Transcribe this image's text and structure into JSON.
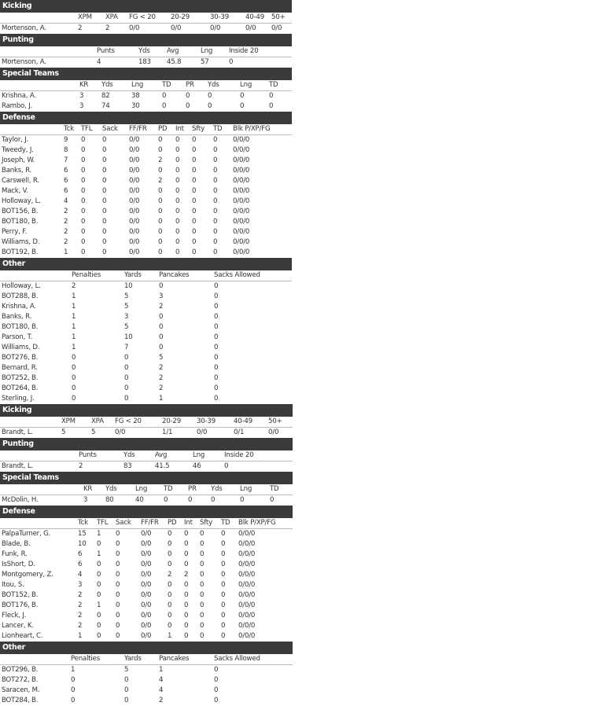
{
  "left": [
    {
      "title": "Kicking",
      "headers": [
        "XPM",
        "XPA",
        "FG < 20",
        "20-29",
        "30-39",
        "40-49",
        "50+"
      ],
      "rows": [
        [
          "Mortenson, A.",
          2,
          2,
          "0/0",
          "0/0",
          "0/0",
          "0/0",
          "0/0"
        ]
      ]
    },
    {
      "title": "Punting",
      "headers": [
        "Punts",
        "Yds",
        "Avg",
        "Lng",
        "Inside 20"
      ],
      "rows": [
        [
          "Mortenson, A.",
          4,
          183,
          45.8,
          57,
          0
        ]
      ]
    },
    {
      "title": "Special Teams",
      "headers": [
        "KR",
        "Yds",
        "Lng",
        "TD",
        "PR",
        "Yds",
        "Lng",
        "TD"
      ],
      "rows": [
        [
          "Krishna, A.",
          3,
          82,
          38,
          0,
          0,
          0,
          0,
          0
        ],
        [
          "Rambo, J.",
          3,
          74,
          30,
          0,
          0,
          0,
          0,
          0
        ]
      ]
    },
    {
      "title": "Defense",
      "headers": [
        "Tck",
        "TFL",
        "Sack",
        "FF/FR",
        "PD",
        "Int",
        "Sfty",
        "TD",
        "Blk P/XP/FG"
      ],
      "rows": [
        [
          "Taylor, J.",
          9,
          0,
          0,
          "0/0",
          0,
          0,
          0,
          0,
          "0/0/0"
        ],
        [
          "Tweedy, J.",
          8,
          0,
          0,
          "0/0",
          0,
          0,
          0,
          0,
          "0/0/0"
        ],
        [
          "Joseph, W.",
          7,
          0,
          0,
          "0/0",
          2,
          0,
          0,
          0,
          "0/0/0"
        ],
        [
          "Banks, R.",
          6,
          0,
          0,
          "0/0",
          0,
          0,
          0,
          0,
          "0/0/0"
        ],
        [
          "Carswell, R.",
          6,
          0,
          0,
          "0/0",
          2,
          0,
          0,
          0,
          "0/0/0"
        ],
        [
          "Mack, V.",
          6,
          0,
          0,
          "0/0",
          0,
          0,
          0,
          0,
          "0/0/0"
        ],
        [
          "Holloway, L.",
          4,
          0,
          0,
          "0/0",
          0,
          0,
          0,
          0,
          "0/0/0"
        ],
        [
          "BOT156, B.",
          2,
          0,
          0,
          "0/0",
          0,
          0,
          0,
          0,
          "0/0/0"
        ],
        [
          "BOT180, B.",
          2,
          0,
          0,
          "0/0",
          0,
          0,
          0,
          0,
          "0/0/0"
        ],
        [
          "Perry, F.",
          2,
          0,
          0,
          "0/0",
          0,
          0,
          0,
          0,
          "0/0/0"
        ],
        [
          "Williams, D.",
          2,
          0,
          0,
          "0/0",
          0,
          0,
          0,
          0,
          "0/0/0"
        ],
        [
          "BOT192, B.",
          1,
          0,
          0,
          "0/0",
          0,
          0,
          0,
          0,
          "0/0/0"
        ]
      ]
    },
    {
      "title": "Other",
      "headers": [
        "Penalties",
        "Yards",
        "Pancakes",
        "Sacks Allowed"
      ],
      "rows": [
        [
          "Holloway, L.",
          2,
          10,
          0,
          0
        ],
        [
          "BOT288, B.",
          1,
          5,
          3,
          0
        ],
        [
          "Krishna, A.",
          1,
          5,
          2,
          0
        ],
        [
          "Banks, R.",
          1,
          3,
          0,
          0
        ],
        [
          "BOT180, B.",
          1,
          5,
          0,
          0
        ],
        [
          "Parson, T.",
          1,
          10,
          0,
          0
        ],
        [
          "Williams, D.",
          1,
          7,
          0,
          0
        ],
        [
          "BOT276, B.",
          0,
          0,
          5,
          0
        ],
        [
          "Bernard, R.",
          0,
          0,
          2,
          0
        ],
        [
          "BOT252, B.",
          0,
          0,
          2,
          0
        ],
        [
          "BOT264, B.",
          0,
          0,
          2,
          0
        ],
        [
          "Sterling, J.",
          0,
          0,
          1,
          0
        ]
      ]
    }
  ],
  "right": [
    {
      "title": "Kicking",
      "headers": [
        "XPM",
        "XPA",
        "FG < 20",
        "20-29",
        "30-39",
        "40-49",
        "50+"
      ],
      "rows": [
        [
          "Brandt, L.",
          5,
          5,
          "0/0",
          "1/1",
          "0/0",
          "0/1",
          "0/0"
        ]
      ]
    },
    {
      "title": "Punting",
      "headers": [
        "Punts",
        "Yds",
        "Avg",
        "Lng",
        "Inside 20"
      ],
      "rows": [
        [
          "Brandt, L.",
          2,
          83,
          41.5,
          46,
          0
        ]
      ]
    },
    {
      "title": "Special Teams",
      "headers": [
        "KR",
        "Yds",
        "Lng",
        "TD",
        "PR",
        "Yds",
        "Lng",
        "TD"
      ],
      "rows": [
        [
          "McDolin, H.",
          3,
          80,
          40,
          0,
          0,
          0,
          0,
          0
        ]
      ]
    },
    {
      "title": "Defense",
      "headers": [
        "Tck",
        "TFL",
        "Sack",
        "FF/FR",
        "PD",
        "Int",
        "Sfty",
        "TD",
        "Blk P/XP/FG"
      ],
      "rows": [
        [
          "PalpaTurner, G.",
          15,
          1,
          0,
          "0/0",
          0,
          0,
          0,
          0,
          "0/0/0"
        ],
        [
          "Blade, B.",
          10,
          0,
          0,
          "0/0",
          0,
          0,
          0,
          0,
          "0/0/0"
        ],
        [
          "Funk, R.",
          6,
          1,
          0,
          "0/0",
          0,
          0,
          0,
          0,
          "0/0/0"
        ],
        [
          "IsShort, D.",
          6,
          0,
          0,
          "0/0",
          0,
          0,
          0,
          0,
          "0/0/0"
        ],
        [
          "Montgomery, Z.",
          4,
          0,
          0,
          "0/0",
          2,
          2,
          0,
          0,
          "0/0/0"
        ],
        [
          "Itou, S.",
          3,
          0,
          0,
          "0/0",
          0,
          0,
          0,
          0,
          "0/0/0"
        ],
        [
          "BOT152, B.",
          2,
          0,
          0,
          "0/0",
          0,
          0,
          0,
          0,
          "0/0/0"
        ],
        [
          "BOT176, B.",
          2,
          1,
          0,
          "0/0",
          0,
          0,
          0,
          0,
          "0/0/0"
        ],
        [
          "Fleck, J.",
          2,
          0,
          0,
          "0/0",
          0,
          0,
          0,
          0,
          "0/0/0"
        ],
        [
          "Lancer, K.",
          2,
          0,
          0,
          "0/0",
          0,
          0,
          0,
          0,
          "0/0/0"
        ],
        [
          "Lionheart, C.",
          1,
          0,
          0,
          "0/0",
          1,
          0,
          0,
          0,
          "0/0/0"
        ]
      ]
    },
    {
      "title": "Other",
      "headers": [
        "Penalties",
        "Yards",
        "Pancakes",
        "Sacks Allowed"
      ],
      "rows": [
        [
          "BOT296, B.",
          1,
          5,
          1,
          0
        ],
        [
          "BOT272, B.",
          0,
          0,
          4,
          0
        ],
        [
          "Saracen, M.",
          0,
          0,
          4,
          0
        ],
        [
          "BOT284, B.",
          0,
          0,
          2,
          0
        ]
      ]
    }
  ]
}
